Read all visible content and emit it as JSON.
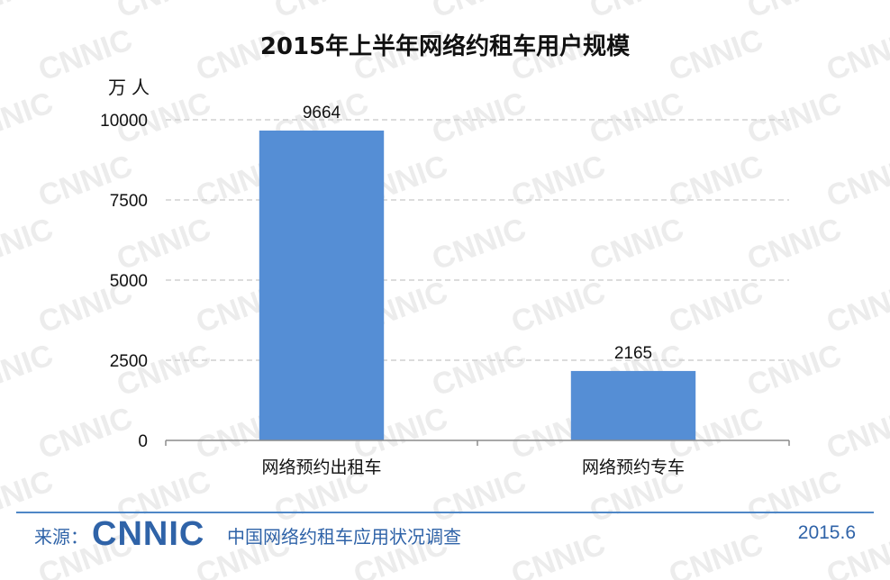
{
  "chart_data": {
    "type": "bar",
    "title": "2015年上半年网络约租车用户规模",
    "unit_label": "万人",
    "categories": [
      "网络预约出租车",
      "网络预约专车"
    ],
    "values": [
      9664,
      2165
    ],
    "data_labels": [
      "9664",
      "2165"
    ],
    "ylim": [
      0,
      10000
    ],
    "yticks": [
      0,
      2500,
      5000,
      7500,
      10000
    ],
    "grid": true,
    "bar_color": "#558ed5"
  },
  "footer": {
    "source_label": "来源：",
    "logo_text": "CNNIC",
    "survey_name": "中国网络约租车应用状况调查",
    "date": "2015.6"
  },
  "watermark_text": "CNNIC",
  "colors": {
    "footer_blue": "#2f63a8",
    "rule_blue": "#4f87c6",
    "watermark": "#ececec"
  }
}
